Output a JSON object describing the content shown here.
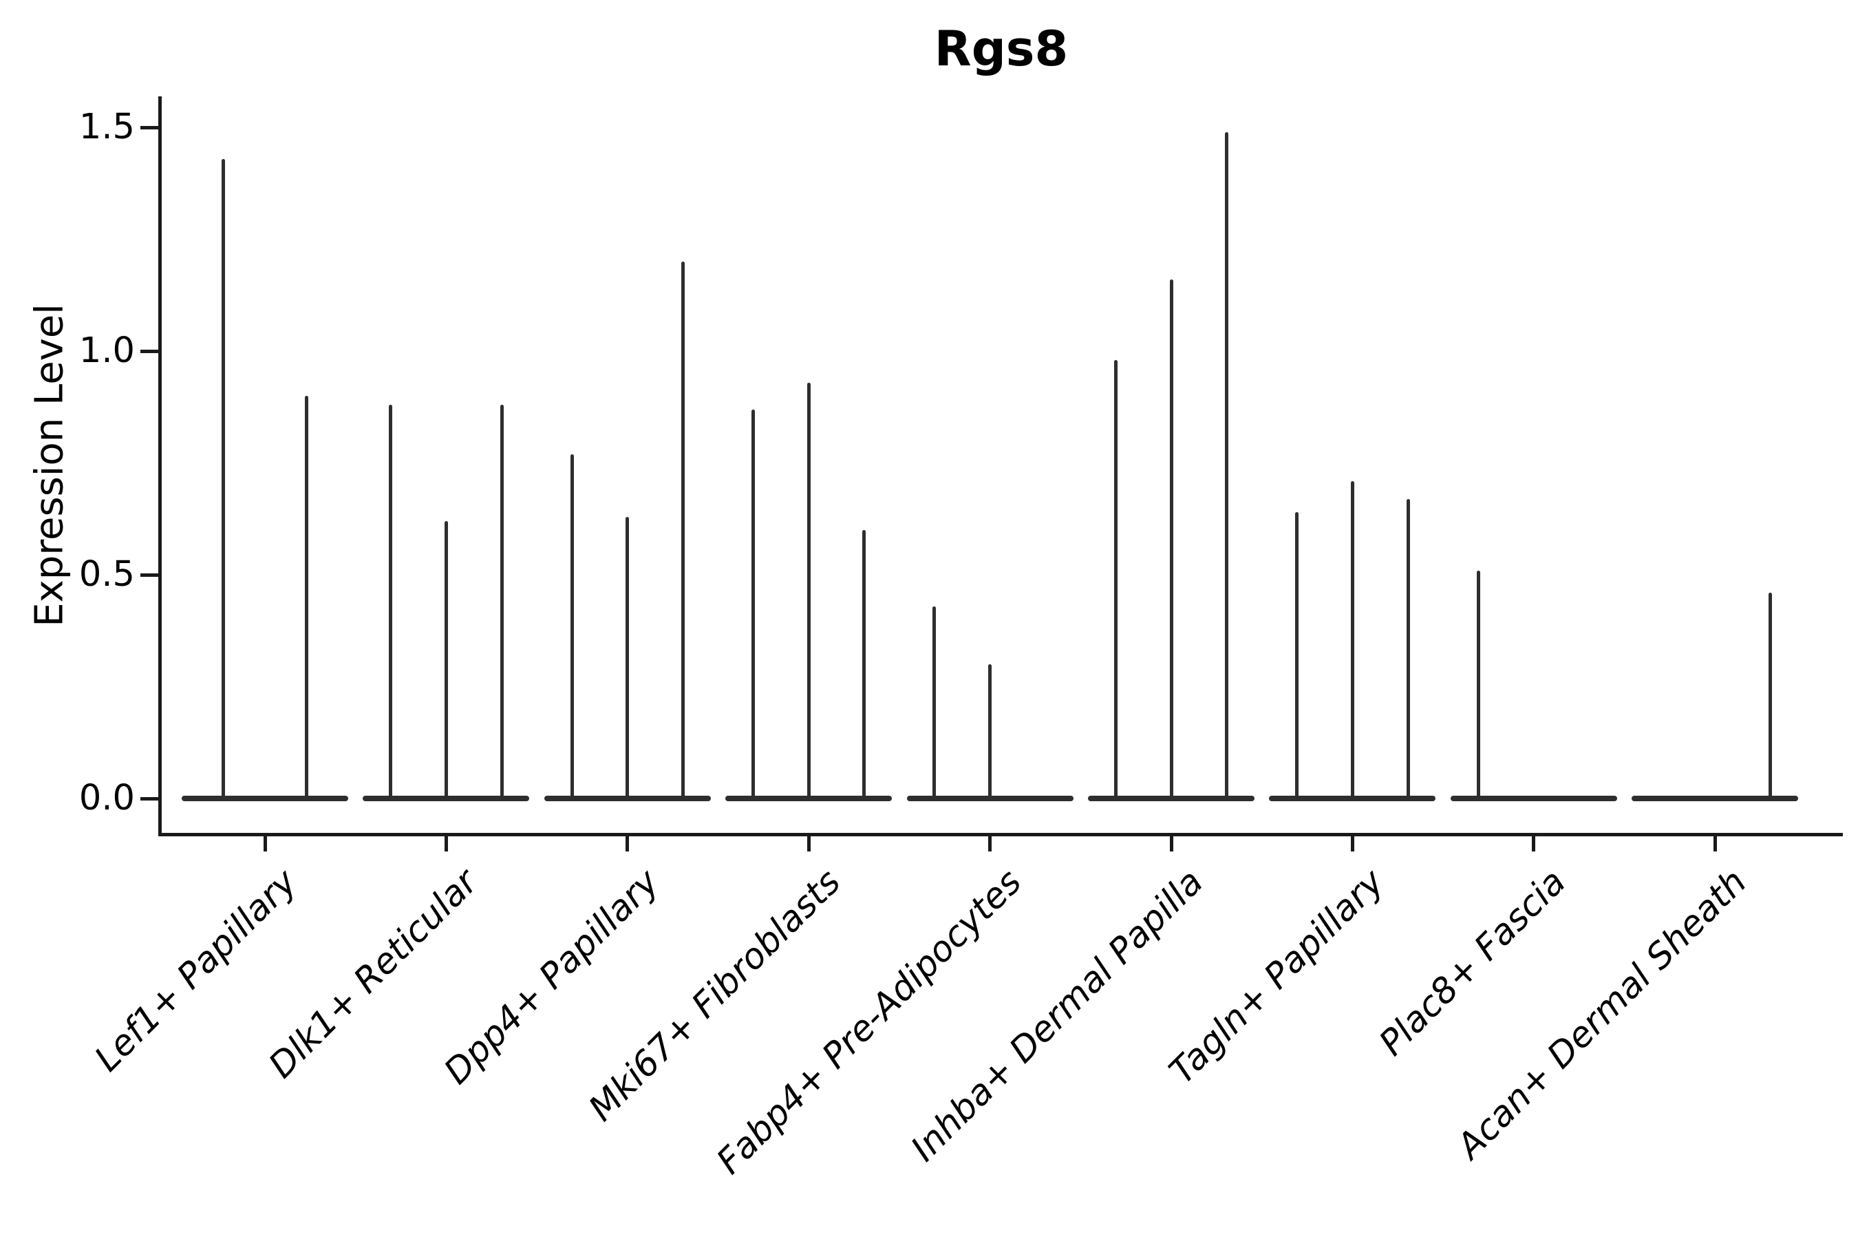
{
  "chart_data": {
    "type": "violin",
    "title": "Rgs8",
    "xlabel": "",
    "ylabel": "Expression Level",
    "y_ticks": [
      0.0,
      0.5,
      1.0,
      1.5
    ],
    "y_tick_labels": [
      "0.0",
      "0.5",
      "1.0",
      "1.5"
    ],
    "ylim": [
      -0.08,
      1.57
    ],
    "grid": false,
    "legend": "none",
    "description": "Violin plot of Rgs8 expression level per cell type. Each category holds 2-3 very thin violins whose mass sits at 0; each value below is the maximum expression (spike top) of one violin, 0 = flat violin with no spike.",
    "categories": [
      "Lef1+ Papillary",
      "Dlk1+ Reticular",
      "Dpp4+ Papillary",
      "Mki67+ Fibroblasts",
      "Fabp4+ Pre-Adipocytes",
      "Inhba+ Dermal Papilla",
      "Tagln+ Papillary",
      "Plac8+ Fascia",
      "Acan+ Dermal Sheath"
    ],
    "groups": [
      {
        "label": "Lef1+ Papillary",
        "violins": [
          1.43,
          0.9
        ]
      },
      {
        "label": "Dlk1+ Reticular",
        "violins": [
          0.88,
          0.62,
          0.88
        ]
      },
      {
        "label": "Dpp4+ Papillary",
        "violins": [
          0.77,
          0.63,
          1.2
        ]
      },
      {
        "label": "Mki67+ Fibroblasts",
        "violins": [
          0.87,
          0.93,
          0.6
        ]
      },
      {
        "label": "Fabp4+ Pre-Adipocytes",
        "violins": [
          0.43,
          0.3,
          0
        ]
      },
      {
        "label": "Inhba+ Dermal Papilla",
        "violins": [
          0.98,
          1.16,
          1.49
        ]
      },
      {
        "label": "Tagln+ Papillary",
        "violins": [
          0.64,
          0.71,
          0.67
        ]
      },
      {
        "label": "Plac8+ Fascia",
        "violins": [
          0.51,
          0,
          0
        ]
      },
      {
        "label": "Acan+ Dermal Sheath",
        "violins": [
          0,
          0,
          0.46
        ]
      }
    ],
    "colors": {
      "violin": "#2e2e2e",
      "axis": "#1a1a1a",
      "text": "#000000",
      "background": "#ffffff"
    }
  }
}
